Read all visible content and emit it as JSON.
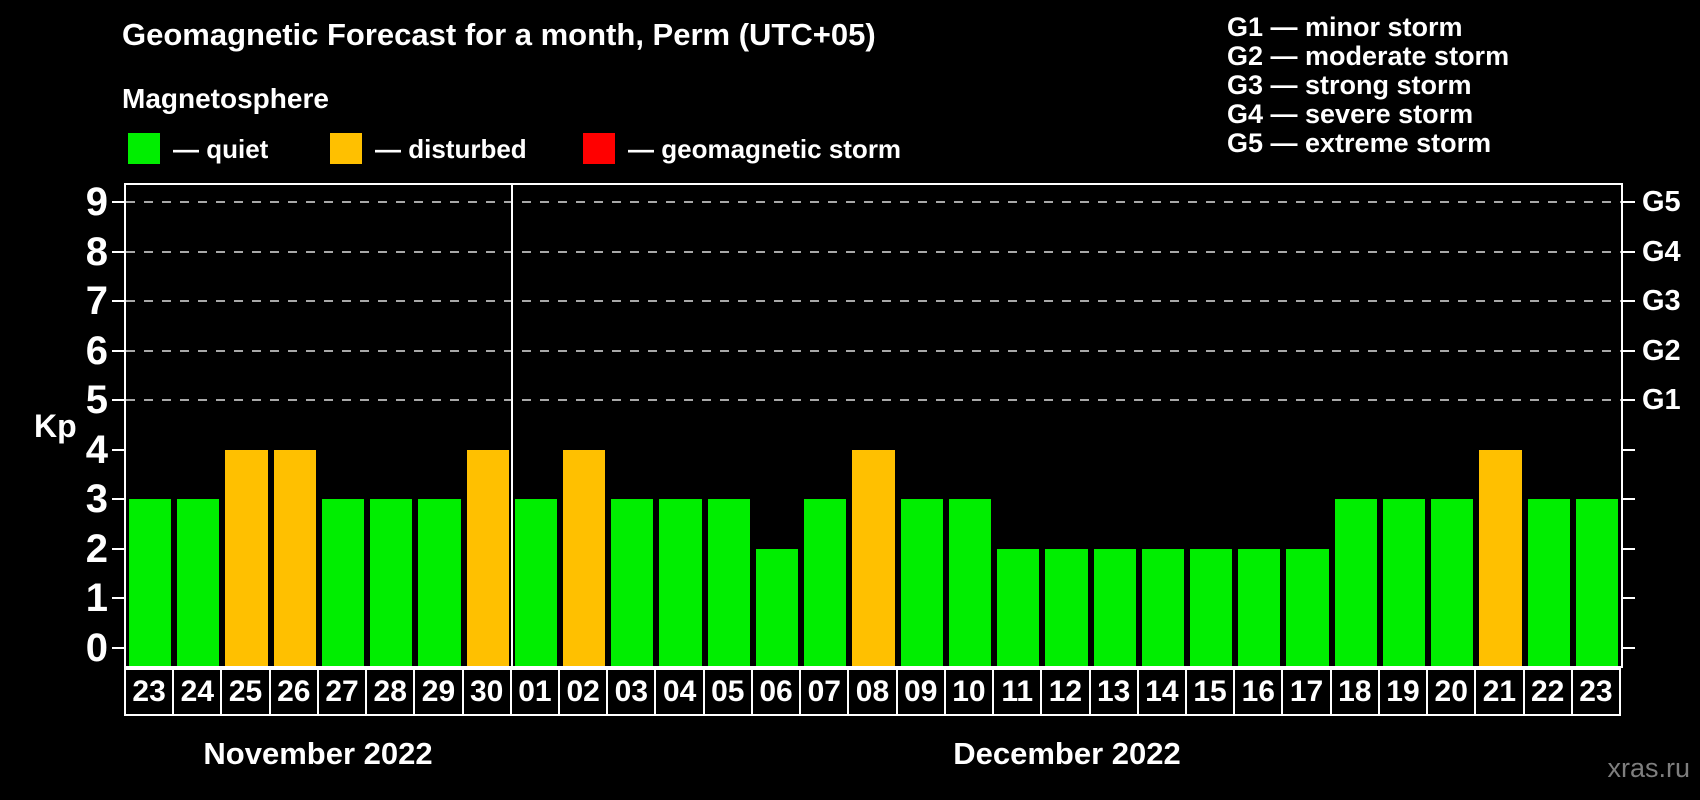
{
  "title": "Geomagnetic Forecast for a month, Perm (UTC+05)",
  "subtitle": "Magnetosphere",
  "legend": {
    "items": [
      {
        "name": "quiet",
        "label": "— quiet",
        "color": "#00ee00"
      },
      {
        "name": "disturbed",
        "label": "— disturbed",
        "color": "#ffc000"
      },
      {
        "name": "geomagnetic-storm",
        "label": "— geomagnetic storm",
        "color": "#ff0000"
      }
    ]
  },
  "g_legend": [
    "G1 — minor storm",
    "G2 — moderate storm",
    "G3 — strong storm",
    "G4 — severe storm",
    "G5 — extreme storm"
  ],
  "axis": {
    "kp_label": "Kp",
    "y_ticks": [
      "0",
      "1",
      "2",
      "3",
      "4",
      "5",
      "6",
      "7",
      "8",
      "9"
    ],
    "right_labels": [
      {
        "kp": 5,
        "label": "G1"
      },
      {
        "kp": 6,
        "label": "G2"
      },
      {
        "kp": 7,
        "label": "G3"
      },
      {
        "kp": 8,
        "label": "G4"
      },
      {
        "kp": 9,
        "label": "G5"
      }
    ]
  },
  "months": [
    {
      "label": "November 2022"
    },
    {
      "label": "December 2022"
    }
  ],
  "watermark": "xras.ru",
  "chart_data": {
    "type": "bar",
    "title": "Geomagnetic Forecast for a month, Perm (UTC+05)",
    "xlabel": "",
    "ylabel": "Kp",
    "ylim": [
      0,
      9
    ],
    "grid": "dashed horizontal at Kp 5-9",
    "legend_position": "top-left",
    "status_colors": {
      "quiet": "#00ee00",
      "disturbed": "#ffc000",
      "geomagnetic storm": "#ff0000"
    },
    "categories": [
      "Nov 23",
      "Nov 24",
      "Nov 25",
      "Nov 26",
      "Nov 27",
      "Nov 28",
      "Nov 29",
      "Nov 30",
      "Dec 01",
      "Dec 02",
      "Dec 03",
      "Dec 04",
      "Dec 05",
      "Dec 06",
      "Dec 07",
      "Dec 08",
      "Dec 09",
      "Dec 10",
      "Dec 11",
      "Dec 12",
      "Dec 13",
      "Dec 14",
      "Dec 15",
      "Dec 16",
      "Dec 17",
      "Dec 18",
      "Dec 19",
      "Dec 20",
      "Dec 21",
      "Dec 22",
      "Dec 23"
    ],
    "values": [
      3,
      3,
      4,
      4,
      3,
      3,
      3,
      4,
      3,
      4,
      3,
      3,
      3,
      2,
      3,
      4,
      3,
      3,
      2,
      2,
      2,
      2,
      2,
      2,
      2,
      3,
      3,
      3,
      4,
      3,
      3
    ],
    "statuses": [
      "quiet",
      "quiet",
      "disturbed",
      "disturbed",
      "quiet",
      "quiet",
      "quiet",
      "disturbed",
      "quiet",
      "disturbed",
      "quiet",
      "quiet",
      "quiet",
      "quiet",
      "quiet",
      "disturbed",
      "quiet",
      "quiet",
      "quiet",
      "quiet",
      "quiet",
      "quiet",
      "quiet",
      "quiet",
      "quiet",
      "quiet",
      "quiet",
      "quiet",
      "disturbed",
      "quiet",
      "quiet"
    ],
    "days": [
      {
        "month": 0,
        "label": "23",
        "kp": 3,
        "status": "quiet"
      },
      {
        "month": 0,
        "label": "24",
        "kp": 3,
        "status": "quiet"
      },
      {
        "month": 0,
        "label": "25",
        "kp": 4,
        "status": "disturbed"
      },
      {
        "month": 0,
        "label": "26",
        "kp": 4,
        "status": "disturbed"
      },
      {
        "month": 0,
        "label": "27",
        "kp": 3,
        "status": "quiet"
      },
      {
        "month": 0,
        "label": "28",
        "kp": 3,
        "status": "quiet"
      },
      {
        "month": 0,
        "label": "29",
        "kp": 3,
        "status": "quiet"
      },
      {
        "month": 0,
        "label": "30",
        "kp": 4,
        "status": "disturbed"
      },
      {
        "month": 1,
        "label": "01",
        "kp": 3,
        "status": "quiet"
      },
      {
        "month": 1,
        "label": "02",
        "kp": 4,
        "status": "disturbed"
      },
      {
        "month": 1,
        "label": "03",
        "kp": 3,
        "status": "quiet"
      },
      {
        "month": 1,
        "label": "04",
        "kp": 3,
        "status": "quiet"
      },
      {
        "month": 1,
        "label": "05",
        "kp": 3,
        "status": "quiet"
      },
      {
        "month": 1,
        "label": "06",
        "kp": 2,
        "status": "quiet"
      },
      {
        "month": 1,
        "label": "07",
        "kp": 3,
        "status": "quiet"
      },
      {
        "month": 1,
        "label": "08",
        "kp": 4,
        "status": "disturbed"
      },
      {
        "month": 1,
        "label": "09",
        "kp": 3,
        "status": "quiet"
      },
      {
        "month": 1,
        "label": "10",
        "kp": 3,
        "status": "quiet"
      },
      {
        "month": 1,
        "label": "11",
        "kp": 2,
        "status": "quiet"
      },
      {
        "month": 1,
        "label": "12",
        "kp": 2,
        "status": "quiet"
      },
      {
        "month": 1,
        "label": "13",
        "kp": 2,
        "status": "quiet"
      },
      {
        "month": 1,
        "label": "14",
        "kp": 2,
        "status": "quiet"
      },
      {
        "month": 1,
        "label": "15",
        "kp": 2,
        "status": "quiet"
      },
      {
        "month": 1,
        "label": "16",
        "kp": 2,
        "status": "quiet"
      },
      {
        "month": 1,
        "label": "17",
        "kp": 2,
        "status": "quiet"
      },
      {
        "month": 1,
        "label": "18",
        "kp": 3,
        "status": "quiet"
      },
      {
        "month": 1,
        "label": "19",
        "kp": 3,
        "status": "quiet"
      },
      {
        "month": 1,
        "label": "20",
        "kp": 3,
        "status": "quiet"
      },
      {
        "month": 1,
        "label": "21",
        "kp": 4,
        "status": "disturbed"
      },
      {
        "month": 1,
        "label": "22",
        "kp": 3,
        "status": "quiet"
      },
      {
        "month": 1,
        "label": "23",
        "kp": 3,
        "status": "quiet"
      }
    ]
  }
}
